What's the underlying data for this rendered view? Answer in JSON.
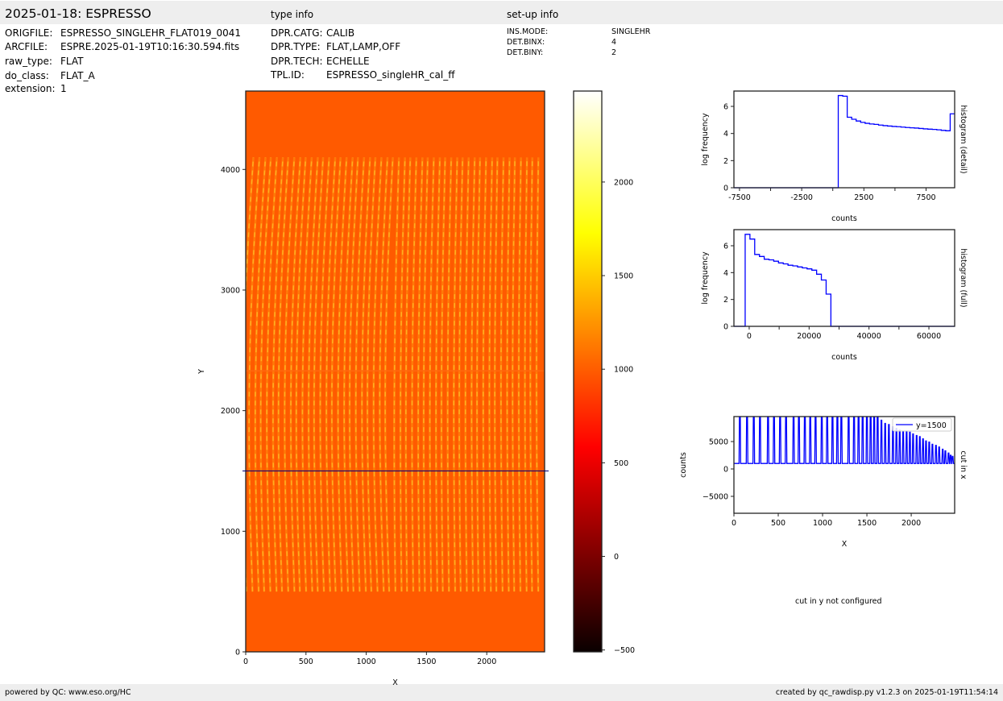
{
  "header": {
    "title": "2025-01-18: ESPRESSO",
    "type_info_title": "type info",
    "setup_info_title": "set-up info"
  },
  "file_info": [
    {
      "label": "ORIGFILE:",
      "value": "ESPRESSO_SINGLEHR_FLAT019_0041"
    },
    {
      "label": "ARCFILE:",
      "value": "ESPRE.2025-01-19T10:16:30.594.fits"
    },
    {
      "label": "raw_type:",
      "value": "FLAT"
    },
    {
      "label": "do_class:",
      "value": "FLAT_A"
    },
    {
      "label": "extension:",
      "value": "1"
    }
  ],
  "type_info": [
    {
      "label": "DPR.CATG:",
      "value": "CALIB"
    },
    {
      "label": "DPR.TYPE:",
      "value": "FLAT,LAMP,OFF"
    },
    {
      "label": "DPR.TECH:",
      "value": "ECHELLE"
    },
    {
      "label": "TPL.ID:",
      "value": "ESPRESSO_singleHR_cal_ff"
    }
  ],
  "setup_info": [
    {
      "label": "INS.MODE:",
      "value": "SINGLEHR"
    },
    {
      "label": "DET.BINX:",
      "value": "4"
    },
    {
      "label": "DET.BINY:",
      "value": "2"
    }
  ],
  "footer": {
    "left": "powered by QC: www.eso.org/HC",
    "right": "created by qc_rawdisp.py v1.2.3 on 2025-01-19T11:54:14"
  },
  "cut_y_note": "cut in y not configured",
  "colors": {
    "line": "#0000ff",
    "background_orange": "#ff5a00",
    "bar_gray": "#eeeeee"
  },
  "chart_data": [
    {
      "id": "image",
      "type": "heatmap",
      "xlabel": "X",
      "ylabel": "Y",
      "xlim": [
        0,
        2480
      ],
      "ylim": [
        0,
        4650
      ],
      "xticks": [
        0,
        500,
        1000,
        1500,
        2000
      ],
      "yticks": [
        0,
        1000,
        2000,
        3000,
        4000
      ],
      "colormap": "hot",
      "cut_line_y": 1500,
      "colorbar": {
        "lim": [
          -510,
          2486
        ],
        "ticks": [
          -500,
          0,
          500,
          1000,
          1500,
          2000
        ]
      }
    },
    {
      "id": "hist_detail",
      "type": "line",
      "title": "histogram (detail)",
      "xlabel": "counts",
      "ylabel": "log frequency",
      "xlim": [
        -7950,
        9800
      ],
      "ylim": [
        0,
        7.13
      ],
      "xticks": [
        -7500,
        -5000,
        -2500,
        0,
        2500,
        5000,
        7500
      ],
      "xticklabels": [
        "-7500",
        "",
        "-2500",
        "",
        "2500",
        "",
        "7500"
      ],
      "yticks": [
        0,
        2,
        4,
        6
      ],
      "bin_start": 440,
      "bin_width": 360,
      "values": [
        6.8,
        6.75,
        5.2,
        5.05,
        4.92,
        4.82,
        4.75,
        4.7,
        4.67,
        4.62,
        4.58,
        4.55,
        4.52,
        4.5,
        4.47,
        4.44,
        4.42,
        4.4,
        4.37,
        4.34,
        4.32,
        4.3,
        4.27,
        4.23,
        4.2,
        5.45
      ]
    },
    {
      "id": "hist_full",
      "type": "line",
      "title": "histogram (full)",
      "xlabel": "counts",
      "ylabel": "log frequency",
      "xlim": [
        -5100,
        68600
      ],
      "ylim": [
        0,
        7.2
      ],
      "xticks": [
        0,
        10000,
        20000,
        30000,
        40000,
        50000,
        60000
      ],
      "xticklabels": [
        "0",
        "",
        "20000",
        "",
        "40000",
        "",
        "60000"
      ],
      "yticks": [
        0,
        2,
        4,
        6
      ],
      "bin_start": -1345,
      "bin_width": 1590,
      "values": [
        6.85,
        6.5,
        5.35,
        5.2,
        5.0,
        4.95,
        4.85,
        4.72,
        4.65,
        4.55,
        4.5,
        4.42,
        4.35,
        4.28,
        4.18,
        3.88,
        3.45,
        2.4
      ]
    },
    {
      "id": "cut_x",
      "type": "line",
      "title": "cut in x",
      "xlabel": "X",
      "ylabel": "counts",
      "xlim": [
        0,
        2490
      ],
      "ylim": [
        -8090,
        9560
      ],
      "xticks": [
        0,
        500,
        1000,
        1500,
        2000
      ],
      "yticks": [
        -5000,
        0,
        5000
      ],
      "legend": "y=1500",
      "legend_placement": "top-right",
      "baseline": 1000,
      "peaks_x": [
        67,
        148,
        224,
        294,
        385,
        452,
        521,
        588,
        673,
        733,
        800,
        861,
        921,
        991,
        1052,
        1112,
        1167,
        1212,
        1294,
        1355,
        1406,
        1452,
        1500,
        1542,
        1582,
        1621,
        1664,
        1706,
        1748,
        1794,
        1833,
        1870,
        1909,
        1948,
        1985,
        2021,
        2061,
        2097,
        2133,
        2167,
        2203,
        2239,
        2279,
        2315,
        2355,
        2385,
        2421,
        2445,
        2467
      ],
      "peaks_y": [
        12000,
        12000,
        12000,
        12000,
        12000,
        12000,
        12000,
        12000,
        12000,
        12000,
        12000,
        12000,
        12000,
        12000,
        12000,
        12000,
        12000,
        12000,
        12000,
        12000,
        12000,
        12000,
        12000,
        12000,
        12000,
        12000,
        8900,
        8300,
        8100,
        7700,
        7400,
        7100,
        6900,
        6800,
        6700,
        6400,
        6100,
        5900,
        5500,
        5100,
        4900,
        4500,
        4300,
        4000,
        3600,
        3300,
        2900,
        2500,
        2300
      ]
    }
  ]
}
